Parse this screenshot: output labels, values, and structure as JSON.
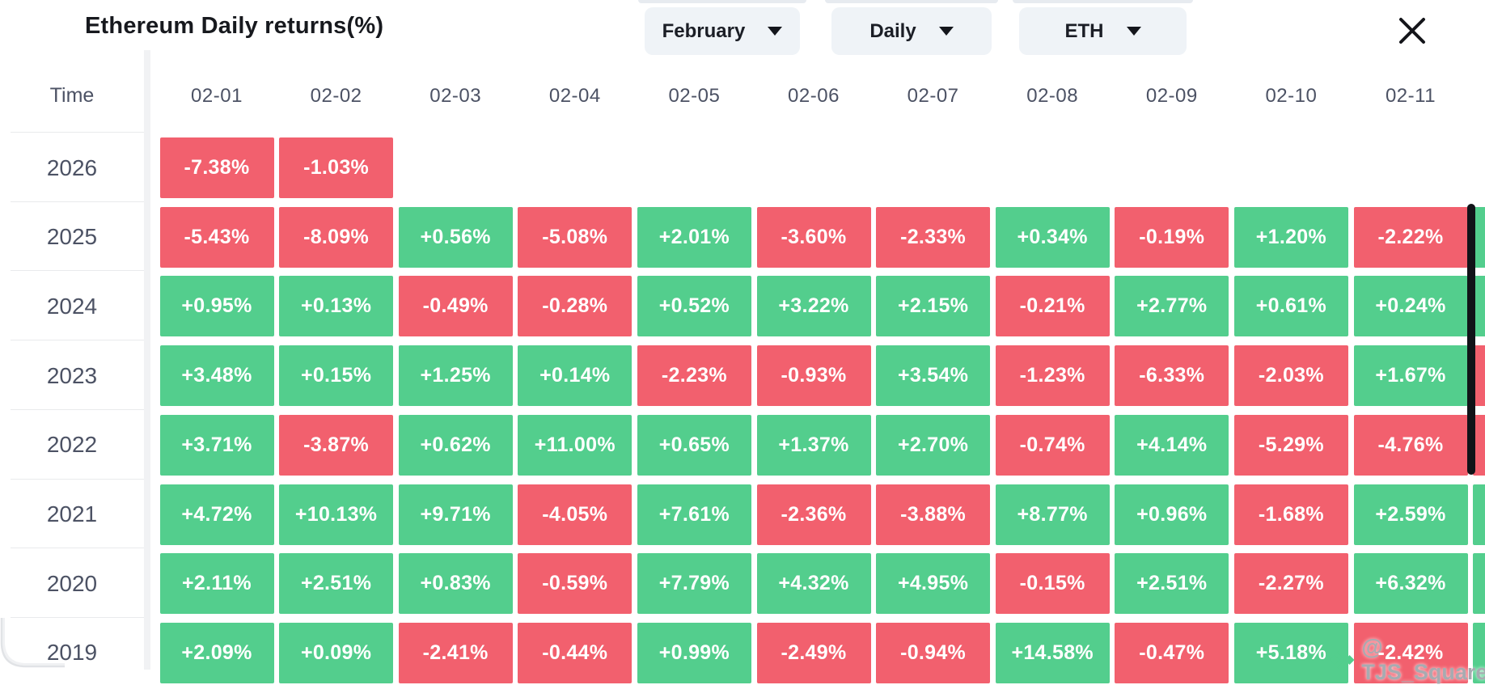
{
  "header": {
    "title": "Ethereum Daily returns(%)",
    "dropdowns": [
      {
        "id": "month",
        "label": "February"
      },
      {
        "id": "interval",
        "label": "Daily"
      },
      {
        "id": "asset",
        "label": "ETH"
      }
    ],
    "close_icon": "x-icon"
  },
  "table": {
    "time_label": "Time",
    "columns": [
      "02-01",
      "02-02",
      "02-03",
      "02-04",
      "02-05",
      "02-06",
      "02-07",
      "02-08",
      "02-09",
      "02-10",
      "02-11"
    ],
    "rows": [
      {
        "year": "2026",
        "values": [
          "-7.38%",
          "-1.03%"
        ],
        "edge": null
      },
      {
        "year": "2025",
        "values": [
          "-5.43%",
          "-8.09%",
          "+0.56%",
          "-5.08%",
          "+2.01%",
          "-3.60%",
          "-2.33%",
          "+0.34%",
          "-0.19%",
          "+1.20%",
          "-2.22%"
        ],
        "edge": "pos"
      },
      {
        "year": "2024",
        "values": [
          "+0.95%",
          "+0.13%",
          "-0.49%",
          "-0.28%",
          "+0.52%",
          "+3.22%",
          "+2.15%",
          "-0.21%",
          "+2.77%",
          "+0.61%",
          "+0.24%"
        ],
        "edge": "pos"
      },
      {
        "year": "2023",
        "values": [
          "+3.48%",
          "+0.15%",
          "+1.25%",
          "+0.14%",
          "-2.23%",
          "-0.93%",
          "+3.54%",
          "-1.23%",
          "-6.33%",
          "-2.03%",
          "+1.67%"
        ],
        "edge": "neg"
      },
      {
        "year": "2022",
        "values": [
          "+3.71%",
          "-3.87%",
          "+0.62%",
          "+11.00%",
          "+0.65%",
          "+1.37%",
          "+2.70%",
          "-0.74%",
          "+4.14%",
          "-5.29%",
          "-4.76%"
        ],
        "edge": "neg"
      },
      {
        "year": "2021",
        "values": [
          "+4.72%",
          "+10.13%",
          "+9.71%",
          "-4.05%",
          "+7.61%",
          "-2.36%",
          "-3.88%",
          "+8.77%",
          "+0.96%",
          "-1.68%",
          "+2.59%"
        ],
        "edge": "pos"
      },
      {
        "year": "2020",
        "values": [
          "+2.11%",
          "+2.51%",
          "+0.83%",
          "-0.59%",
          "+7.79%",
          "+4.32%",
          "+4.95%",
          "-0.15%",
          "+2.51%",
          "-2.27%",
          "+6.32%"
        ],
        "edge": "pos"
      },
      {
        "year": "2019",
        "values": [
          "+2.09%",
          "+0.09%",
          "-2.41%",
          "-0.44%",
          "+0.99%",
          "-2.49%",
          "-0.94%",
          "+14.58%",
          "-0.47%",
          "+5.18%",
          "-2.42%"
        ],
        "edge": "pos"
      }
    ]
  },
  "watermark": {
    "text": "@ TJS_Square",
    "logo": "diamond-logo-icon"
  },
  "colors": {
    "positive": "#53ce8d",
    "negative": "#f2606e",
    "dropdown_bg": "#eff3f7",
    "heading_text": "#4c5264",
    "title_text": "#17191e",
    "scrollbar": "#111318",
    "watermark_text": "#a7abb1"
  },
  "chart_data": {
    "type": "heatmap",
    "title": "Ethereum Daily returns(%)",
    "x_categories": [
      "02-01",
      "02-02",
      "02-03",
      "02-04",
      "02-05",
      "02-06",
      "02-07",
      "02-08",
      "02-09",
      "02-10",
      "02-11"
    ],
    "y_categories": [
      "2026",
      "2025",
      "2024",
      "2023",
      "2022",
      "2021",
      "2020",
      "2019"
    ],
    "unit": "%",
    "series": [
      {
        "name": "2026",
        "values": [
          -7.38,
          -1.03,
          null,
          null,
          null,
          null,
          null,
          null,
          null,
          null,
          null
        ]
      },
      {
        "name": "2025",
        "values": [
          -5.43,
          -8.09,
          0.56,
          -5.08,
          2.01,
          -3.6,
          -2.33,
          0.34,
          -0.19,
          1.2,
          -2.22
        ]
      },
      {
        "name": "2024",
        "values": [
          0.95,
          0.13,
          -0.49,
          -0.28,
          0.52,
          3.22,
          2.15,
          -0.21,
          2.77,
          0.61,
          0.24
        ]
      },
      {
        "name": "2023",
        "values": [
          3.48,
          0.15,
          1.25,
          0.14,
          -2.23,
          -0.93,
          3.54,
          -1.23,
          -6.33,
          -2.03,
          1.67
        ]
      },
      {
        "name": "2022",
        "values": [
          3.71,
          -3.87,
          0.62,
          11.0,
          0.65,
          1.37,
          2.7,
          -0.74,
          4.14,
          -5.29,
          -4.76
        ]
      },
      {
        "name": "2021",
        "values": [
          4.72,
          10.13,
          9.71,
          -4.05,
          7.61,
          -2.36,
          -3.88,
          8.77,
          0.96,
          -1.68,
          2.59
        ]
      },
      {
        "name": "2020",
        "values": [
          2.11,
          2.51,
          0.83,
          -0.59,
          7.79,
          4.32,
          4.95,
          -0.15,
          2.51,
          -2.27,
          6.32
        ]
      },
      {
        "name": "2019",
        "values": [
          2.09,
          0.09,
          -2.41,
          -0.44,
          0.99,
          -2.49,
          -0.94,
          14.58,
          -0.47,
          5.18,
          -2.42
        ]
      }
    ],
    "color_rule": "green = positive return, red = negative return",
    "legend": "off"
  }
}
